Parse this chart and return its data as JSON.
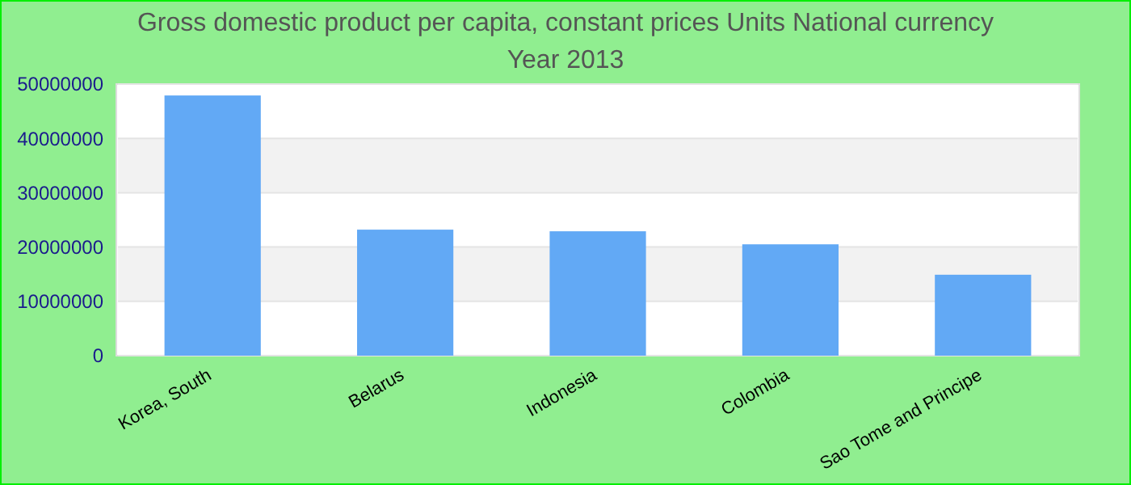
{
  "chart_data": {
    "type": "bar",
    "title": "Gross domestic product per capita, constant prices Units National currency",
    "subtitle": "Year 2013",
    "categories": [
      "Korea, South",
      "Belarus",
      "Indonesia",
      "Colombia",
      "Sao Tome and Principe"
    ],
    "values": [
      47900000,
      23200000,
      22900000,
      20500000,
      14900000
    ],
    "color": "#62a9f5",
    "ylim": [
      0,
      50000000
    ],
    "yticks": [
      0,
      10000000,
      20000000,
      30000000,
      40000000,
      50000000
    ],
    "grid": "y"
  }
}
